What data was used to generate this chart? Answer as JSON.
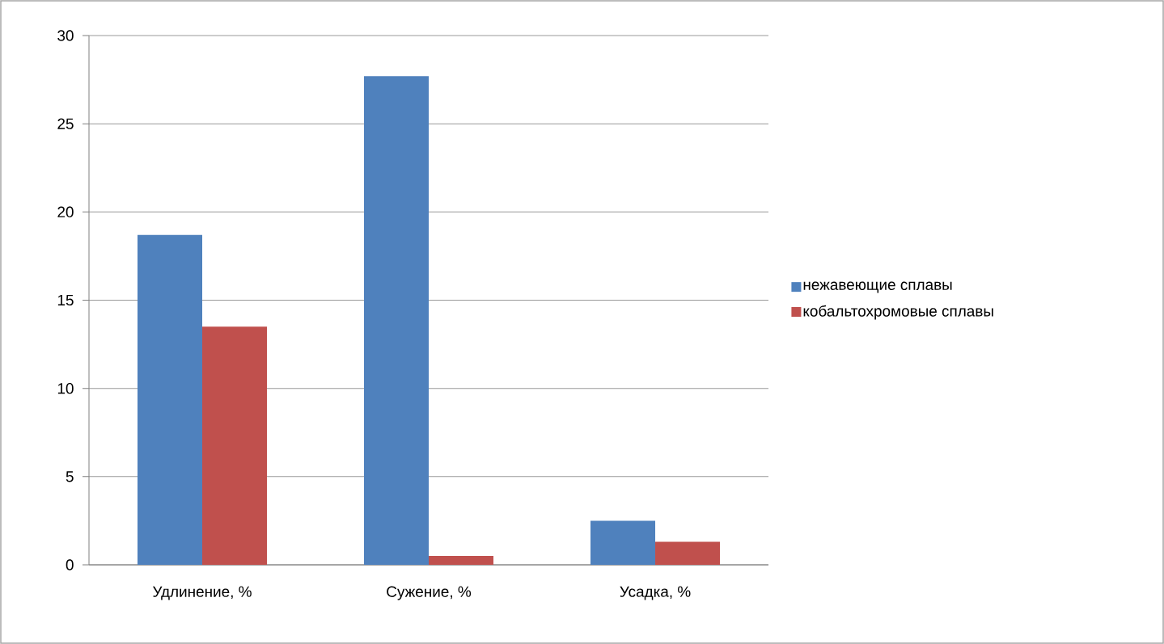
{
  "chart_data": {
    "type": "bar",
    "categories": [
      "Удлинение, %",
      "Сужение, %",
      "Усадка, %"
    ],
    "series": [
      {
        "name": "нежавеющие сплавы",
        "color": "#4f81bd",
        "values": [
          18.7,
          27.7,
          2.5
        ]
      },
      {
        "name": "кобальтохромовые сплавы",
        "color": "#c0504d",
        "values": [
          13.5,
          0.5,
          1.3
        ]
      }
    ],
    "ylim": [
      0,
      30
    ],
    "yticks": [
      0,
      5,
      10,
      15,
      20,
      25,
      30
    ],
    "grid": "y",
    "legend": "right"
  }
}
